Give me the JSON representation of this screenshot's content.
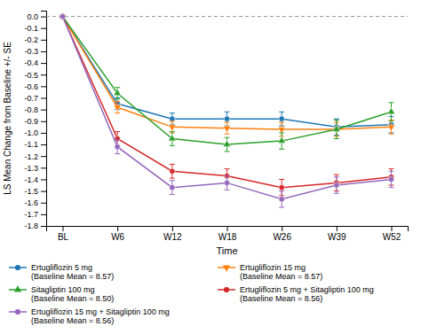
{
  "chart_data": {
    "type": "line",
    "xlabel": "Time",
    "ylabel": "LS Mean Change from Baseline +/- SE",
    "categories": [
      "BL",
      "W6",
      "W12",
      "W18",
      "W26",
      "W39",
      "W52"
    ],
    "series": [
      {
        "name": "Ertugliflozin 5 mg\n(Baseline Mean = 8.57)",
        "marker": "circle",
        "values": [
          0.0,
          -0.75,
          -0.88,
          -0.88,
          -0.88,
          -0.95,
          -0.93
        ],
        "errors": [
          0.0,
          0.05,
          0.05,
          0.06,
          0.06,
          0.07,
          0.07
        ]
      },
      {
        "name": "Ertugliflozin 15 mg\n(Baseline Mean = 8.57)",
        "marker": "triangle-down",
        "values": [
          0.0,
          -0.78,
          -0.95,
          -0.96,
          -0.97,
          -0.97,
          -0.95
        ],
        "errors": [
          0.0,
          0.05,
          0.05,
          0.05,
          0.06,
          0.06,
          0.06
        ]
      },
      {
        "name": "Sitagliptin 100 mg\n(Baseline Mean = 8.50)",
        "marker": "triangle-up",
        "values": [
          0.0,
          -0.66,
          -1.05,
          -1.1,
          -1.07,
          -0.97,
          -0.82
        ],
        "errors": [
          0.0,
          0.05,
          0.06,
          0.06,
          0.07,
          0.08,
          0.08
        ]
      },
      {
        "name": "Ertugliflozin 5 mg + Sitagliptin 100 mg\n(Baseline Mean = 8.56)",
        "marker": "circle",
        "values": [
          0.0,
          -1.05,
          -1.33,
          -1.37,
          -1.47,
          -1.43,
          -1.38
        ],
        "errors": [
          0.0,
          0.06,
          0.06,
          0.06,
          0.07,
          0.07,
          0.07
        ]
      },
      {
        "name": "Ertugliflozin 15 mg + Sitagliptin 100 mg\n(Baseline Mean = 8.56)",
        "marker": "circle",
        "values": [
          0.0,
          -1.12,
          -1.47,
          -1.43,
          -1.57,
          -1.45,
          -1.4
        ],
        "errors": [
          0.0,
          0.06,
          0.06,
          0.06,
          0.07,
          0.07,
          0.07
        ]
      }
    ],
    "reference_line": 0,
    "ylim": [
      -1.8,
      0.05
    ],
    "yticks": [
      {
        "value": 0,
        "label": "0.0"
      },
      -0.1,
      -0.2,
      -0.3,
      -0.4,
      -0.5,
      -0.6,
      -0.7,
      -0.8,
      -0.9,
      {
        "value": -1,
        "label": "-1.0"
      },
      -1.1,
      -1.2,
      -1.3,
      -1.4,
      -1.5,
      -1.6,
      -1.7,
      -1.8
    ],
    "legend": "bottom"
  }
}
